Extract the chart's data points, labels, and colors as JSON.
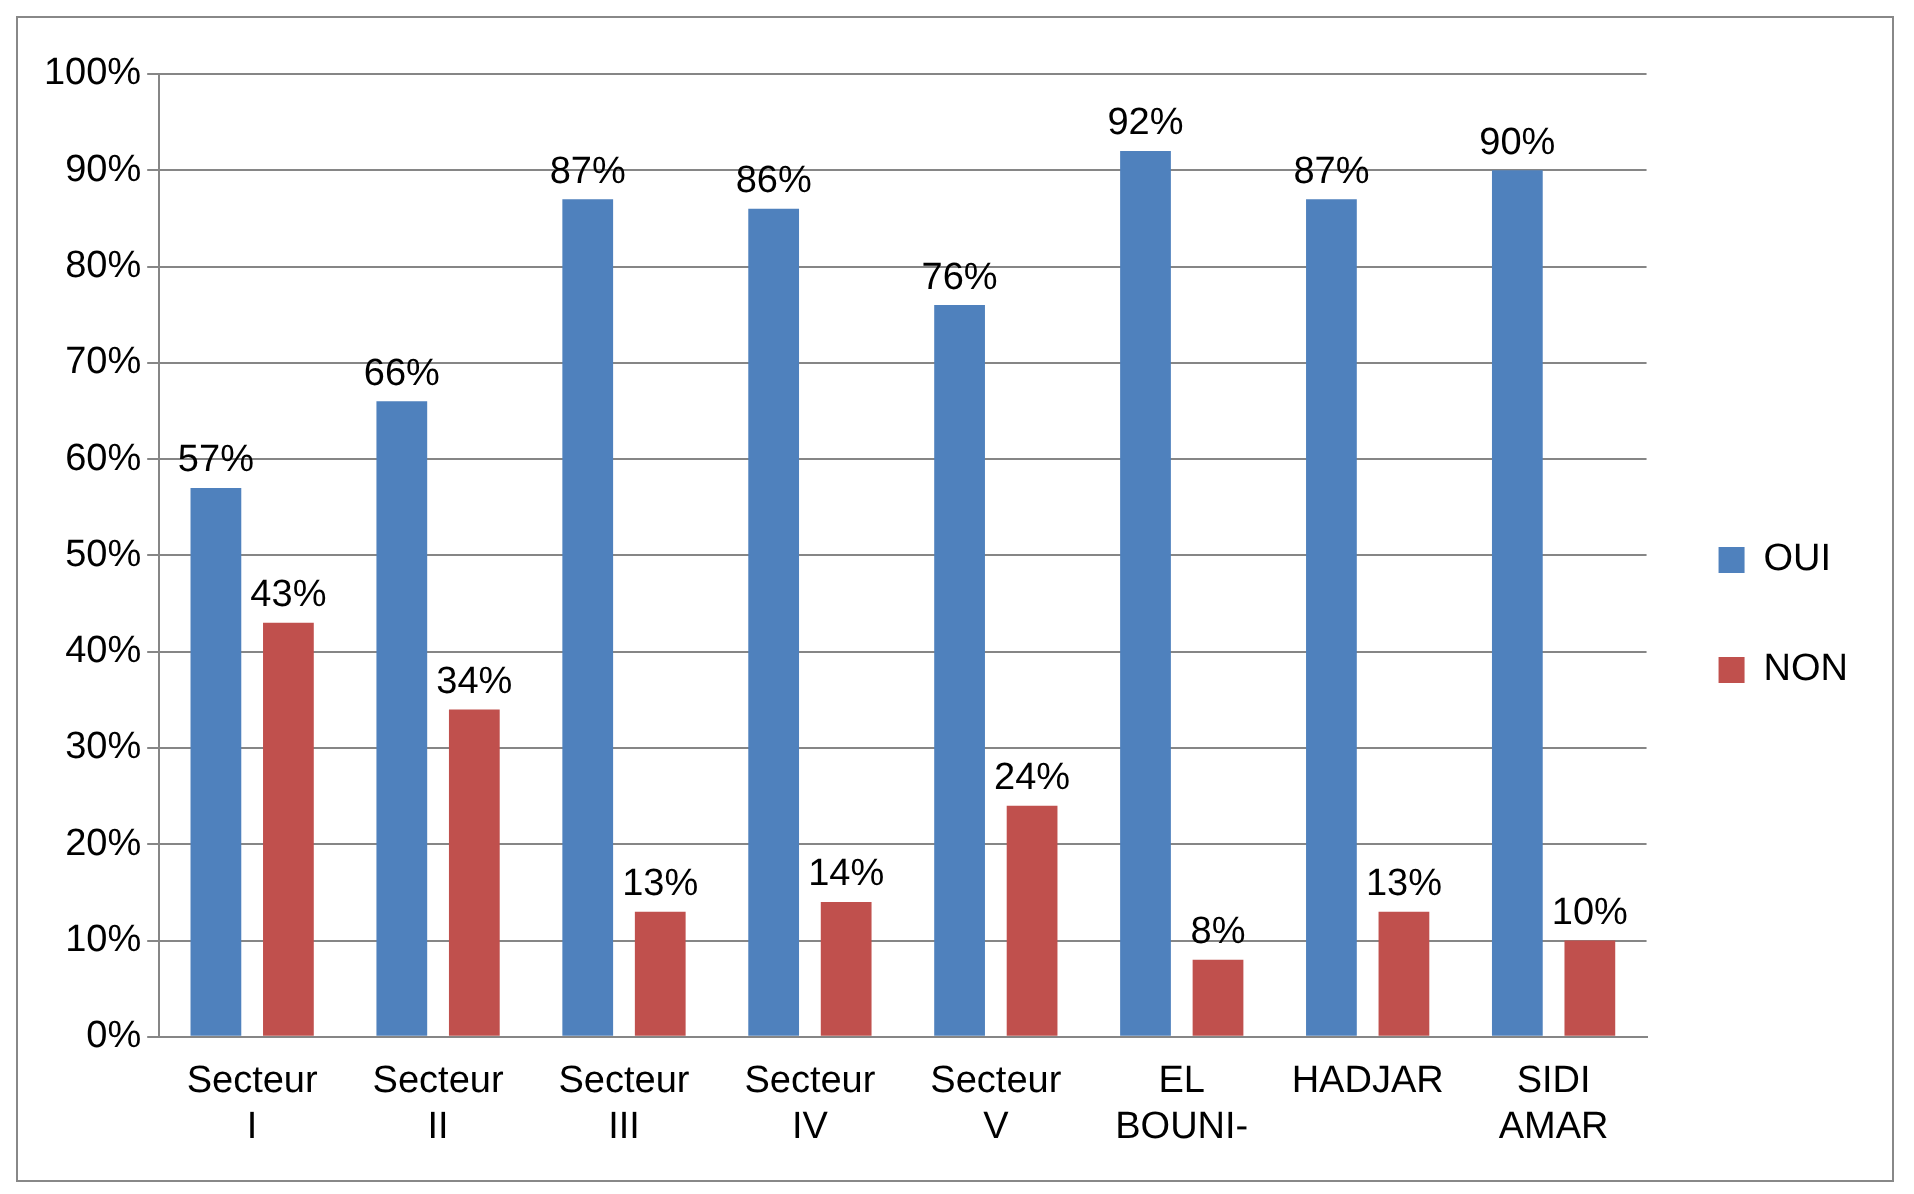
{
  "chart_data": {
    "type": "bar",
    "categories": [
      "Secteur I",
      "Secteur II",
      "Secteur III",
      "Secteur IV",
      "Secteur V",
      "EL BOUNI-",
      "HADJAR",
      "SIDI AMAR"
    ],
    "series": [
      {
        "name": "OUI",
        "color": "#4f81bd",
        "values": [
          57,
          66,
          87,
          86,
          76,
          92,
          87,
          90
        ],
        "value_labels": [
          "57%",
          "66%",
          "87%",
          "86%",
          "76%",
          "92%",
          "87%",
          "90%"
        ]
      },
      {
        "name": "NON",
        "color": "#c0504d",
        "values": [
          43,
          34,
          13,
          14,
          24,
          8,
          13,
          10
        ],
        "value_labels": [
          "43%",
          "34%",
          "13%",
          "14%",
          "24%",
          "8%",
          "13%",
          "10%"
        ]
      }
    ],
    "ylim": [
      0,
      100
    ],
    "yticks": [
      {
        "value": 0,
        "label": "0%"
      },
      {
        "value": 10,
        "label": "10%"
      },
      {
        "value": 20,
        "label": "20%"
      },
      {
        "value": 30,
        "label": "30%"
      },
      {
        "value": 40,
        "label": "40%"
      },
      {
        "value": 50,
        "label": "50%"
      },
      {
        "value": 60,
        "label": "60%"
      },
      {
        "value": 70,
        "label": "70%"
      },
      {
        "value": 80,
        "label": "80%"
      },
      {
        "value": 90,
        "label": "90%"
      },
      {
        "value": 100,
        "label": "100%"
      }
    ],
    "grid": "y",
    "legend": "right"
  }
}
